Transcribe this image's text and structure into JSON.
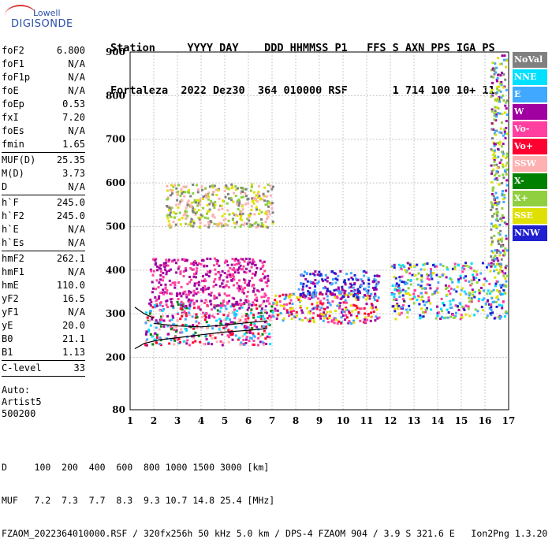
{
  "logo": {
    "line1": "Lowell",
    "line2": "DIGISONDE"
  },
  "header": {
    "line1": "Station     YYYY DAY    DDD HHMMSS P1   FFS S AXN PPS IGA PS",
    "line2": "Fortaleza  2022 Dez30  364 010000 RSF       1 714 100 10+ 11"
  },
  "params": {
    "group1": [
      {
        "name": "foF2",
        "value": "6.800"
      },
      {
        "name": "foF1",
        "value": "N/A"
      },
      {
        "name": "foF1p",
        "value": "N/A"
      },
      {
        "name": "foE",
        "value": "N/A"
      },
      {
        "name": "foEp",
        "value": "0.53"
      },
      {
        "name": "fxI",
        "value": "7.20"
      },
      {
        "name": "foEs",
        "value": "N/A"
      },
      {
        "name": "fmin",
        "value": "1.65"
      }
    ],
    "group2": [
      {
        "name": "MUF(D)",
        "value": "25.35"
      },
      {
        "name": "M(D)",
        "value": "3.73"
      },
      {
        "name": "D",
        "value": "N/A"
      }
    ],
    "group3": [
      {
        "name": "h`F",
        "value": "245.0"
      },
      {
        "name": "h`F2",
        "value": "245.0"
      },
      {
        "name": "h`E",
        "value": "N/A"
      },
      {
        "name": "h`Es",
        "value": "N/A"
      }
    ],
    "group4": [
      {
        "name": "hmF2",
        "value": "262.1"
      },
      {
        "name": "hmF1",
        "value": "N/A"
      },
      {
        "name": "hmE",
        "value": "110.0"
      },
      {
        "name": "yF2",
        "value": "16.5"
      },
      {
        "name": "yF1",
        "value": "N/A"
      },
      {
        "name": "yE",
        "value": "20.0"
      },
      {
        "name": "B0",
        "value": "21.1"
      },
      {
        "name": "B1",
        "value": "1.13"
      }
    ],
    "group5": [
      {
        "name": "C-level",
        "value": "33"
      }
    ],
    "auto": [
      "Auto:",
      "Artist5",
      "500200"
    ]
  },
  "legend": [
    {
      "label": "NoVal",
      "color": "#808080"
    },
    {
      "label": "NNE",
      "color": "#00e0ff"
    },
    {
      "label": "E",
      "color": "#40a8ff"
    },
    {
      "label": "W",
      "color": "#a000a0"
    },
    {
      "label": "Vo-",
      "color": "#ff40a0"
    },
    {
      "label": "Vo+",
      "color": "#ff0030"
    },
    {
      "label": "SSW",
      "color": "#ffb0b0"
    },
    {
      "label": "X-",
      "color": "#008000"
    },
    {
      "label": "X+",
      "color": "#90d040"
    },
    {
      "label": "SSE",
      "color": "#e0e000"
    },
    {
      "label": "NNW",
      "color": "#2020d0"
    }
  ],
  "footer": {
    "line1": "D     100  200  400  600  800 1000 1500 3000 [km]",
    "line2": "MUF   7.2  7.3  7.7  8.3  9.3 10.7 14.8 25.4 [MHz]",
    "line3": "FZAOM_2022364010000.RSF / 320fx256h 50 kHz 5.0 km / DPS-4 FZAOM 904 / 3.9 S 321.6 E   Ion2Png 1.3.20"
  },
  "chart_data": {
    "type": "scatter",
    "title": "",
    "xlabel": "",
    "ylabel": "",
    "xlim": [
      1,
      17
    ],
    "ylim": [
      80,
      900
    ],
    "xticks": [
      1,
      2,
      3,
      4,
      5,
      6,
      7,
      8,
      9,
      10,
      11,
      12,
      13,
      14,
      15,
      16,
      17
    ],
    "yticks": [
      80,
      200,
      300,
      400,
      500,
      600,
      700,
      800,
      900
    ],
    "grid": true,
    "trace_lines": [
      {
        "points": [
          [
            1.2,
            220
          ],
          [
            1.6,
            232
          ],
          [
            2.2,
            240
          ],
          [
            3.0,
            245
          ],
          [
            4.0,
            252
          ],
          [
            5.0,
            258
          ],
          [
            6.0,
            262
          ],
          [
            6.8,
            266
          ]
        ]
      },
      {
        "points": [
          [
            2.0,
            278
          ],
          [
            3.0,
            272
          ],
          [
            4.0,
            270
          ],
          [
            5.0,
            274
          ],
          [
            6.0,
            280
          ],
          [
            6.8,
            284
          ]
        ]
      },
      {
        "points": [
          [
            1.2,
            315
          ],
          [
            1.6,
            300
          ],
          [
            2.0,
            290
          ]
        ]
      }
    ],
    "regions": [
      {
        "x": [
          1.6,
          7.0
        ],
        "y": [
          230,
          330
        ],
        "color_mix": [
          "#ff0030",
          "#40a8ff",
          "#00e0ff",
          "#a000a0",
          "#ff40a0",
          "#008000",
          "#ffb0b0"
        ]
      },
      {
        "x": [
          1.8,
          6.8
        ],
        "y": [
          320,
          430
        ],
        "color_mix": [
          "#a000a0",
          "#ff40a0"
        ]
      },
      {
        "x": [
          7.0,
          11.5
        ],
        "y": [
          280,
          350
        ],
        "color_mix": [
          "#ff0030",
          "#ff40a0",
          "#a000a0",
          "#40a8ff",
          "#e0e000"
        ]
      },
      {
        "x": [
          8.0,
          11.5
        ],
        "y": [
          340,
          400
        ],
        "color_mix": [
          "#2020d0",
          "#40a8ff",
          "#a000a0"
        ]
      },
      {
        "x": [
          2.5,
          7.0
        ],
        "y": [
          500,
          600
        ],
        "color_mix": [
          "#e0e000",
          "#90d040",
          "#ffb0b0",
          "#808080"
        ]
      },
      {
        "x": [
          12.0,
          16.9
        ],
        "y": [
          290,
          420
        ],
        "color_mix": [
          "#2020d0",
          "#40a8ff",
          "#00e0ff",
          "#a000a0",
          "#e0e000",
          "#ff40a0",
          "#90d040"
        ]
      },
      {
        "x": [
          16.2,
          16.9
        ],
        "y": [
          400,
          900
        ],
        "color_mix": [
          "#e0e000",
          "#90d040",
          "#808080",
          "#a000a0",
          "#40a8ff"
        ]
      }
    ]
  }
}
